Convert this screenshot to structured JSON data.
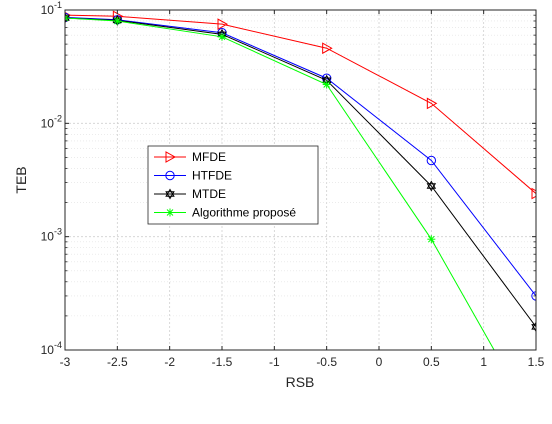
{
  "chart_data": {
    "type": "line",
    "xlabel": "RSB",
    "ylabel": "TEB",
    "xlim": [
      -3,
      1.5
    ],
    "ylim": [
      0.0001,
      0.1
    ],
    "yscale": "log",
    "grid": true,
    "minor_grid": true,
    "legend_position": "center-left",
    "x_ticks": [
      "-3",
      "-2.5",
      "-2",
      "-1.5",
      "-1",
      "-0.5",
      "0",
      "0.5",
      "1",
      "1.5"
    ],
    "y_ticks": [
      {
        "base": "10",
        "exp": "-4"
      },
      {
        "base": "10",
        "exp": "-3"
      },
      {
        "base": "10",
        "exp": "-2"
      },
      {
        "base": "10",
        "exp": "-1"
      }
    ],
    "series": [
      {
        "name": "MFDE",
        "color": "#ff0000",
        "marker": "triangle-right",
        "x": [
          -3,
          -2.5,
          -1.5,
          -0.5,
          0.5,
          1.5
        ],
        "y": [
          0.09,
          0.088,
          0.075,
          0.046,
          0.015,
          0.0024
        ]
      },
      {
        "name": "HTFDE",
        "color": "#0000ff",
        "marker": "circle",
        "x": [
          -3,
          -2.5,
          -1.5,
          -0.5,
          0.5,
          1.5
        ],
        "y": [
          0.086,
          0.082,
          0.063,
          0.025,
          0.0047,
          0.0003
        ]
      },
      {
        "name": "MTDE",
        "color": "#000000",
        "marker": "hexagram",
        "x": [
          -3,
          -2.5,
          -1.5,
          -0.5,
          0.5,
          1.5
        ],
        "y": [
          0.085,
          0.081,
          0.061,
          0.024,
          0.0028,
          0.00016
        ]
      },
      {
        "name": "Algorithme proposé",
        "color": "#00ff00",
        "marker": "asterisk",
        "x": [
          -3,
          -2.5,
          -1.5,
          -0.5,
          0.5,
          1.1
        ],
        "y": [
          0.085,
          0.08,
          0.058,
          0.022,
          0.00095,
          0.0001
        ]
      }
    ]
  }
}
